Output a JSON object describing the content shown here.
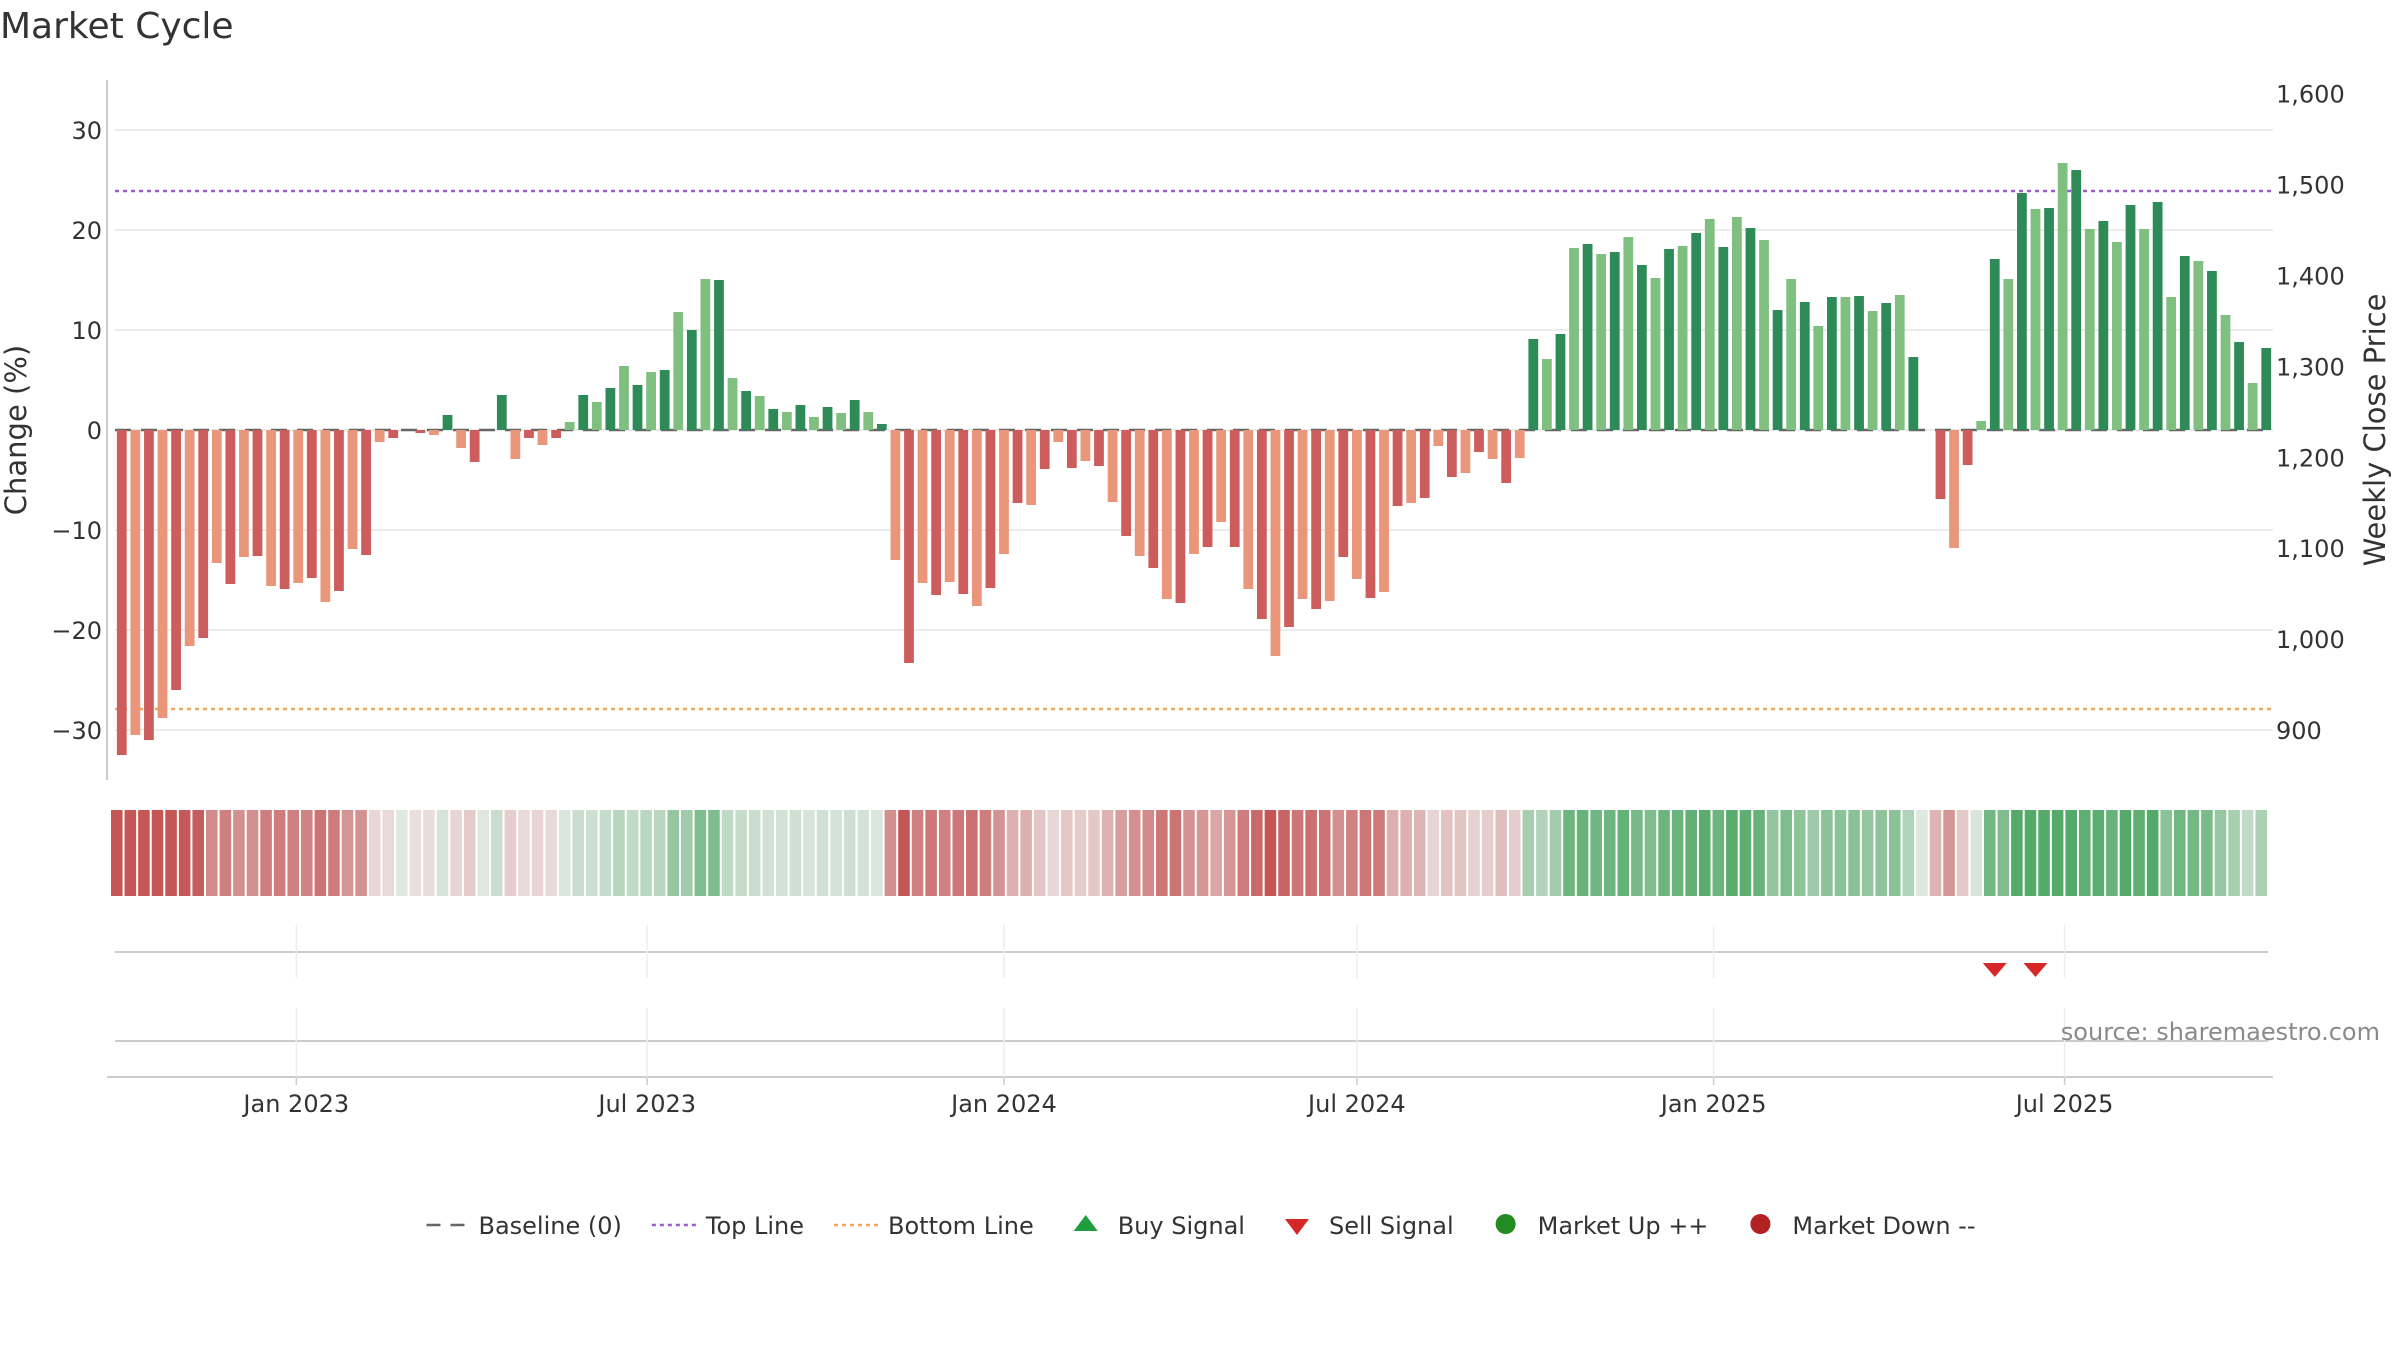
{
  "chart_data": {
    "type": "bar",
    "title": "Market Cycle",
    "ylabel": "Change (%)",
    "y2label": "Weekly Close Price",
    "ylim": [
      -35,
      35
    ],
    "yticks": [
      30,
      20,
      10,
      0,
      -10,
      -20,
      -30
    ],
    "ytick_labels": [
      "30",
      "20",
      "10",
      "0",
      "−10",
      "−20",
      "−30"
    ],
    "y2lim": [
      845,
      1615
    ],
    "y2ticks": [
      1600,
      1500,
      1400,
      1300,
      1200,
      1100,
      1000,
      900
    ],
    "y2tick_labels": [
      "1,600",
      "1,500",
      "1,400",
      "1,300",
      "1,200",
      "1,100",
      "1,000",
      "900"
    ],
    "grid": true,
    "x_start": "2022-10-03",
    "week_step_days": 7,
    "x_end": "2025-09-08",
    "xticks": [
      "2023-01-01",
      "2023-07-01",
      "2024-01-01",
      "2024-07-01",
      "2025-01-01",
      "2025-07-01"
    ],
    "xtick_labels": [
      "Jan 2023",
      "Jul 2023",
      "Jan 2024",
      "Jul 2024",
      "Jan 2025",
      "Jul 2025"
    ],
    "values": [
      -32.5,
      -30.5,
      -31,
      -28.8,
      -26,
      -21.6,
      -20.8,
      -13.3,
      -15.4,
      -12.7,
      -12.6,
      -15.6,
      -15.9,
      -15.3,
      -14.8,
      -17.2,
      -16.1,
      -11.9,
      -12.5,
      -1.2,
      -0.8,
      0,
      -0.3,
      -0.5,
      1.5,
      -1.8,
      -3.2,
      0,
      3.5,
      -2.9,
      -0.8,
      -1.5,
      -0.8,
      0.8,
      3.5,
      2.8,
      4.2,
      6.4,
      4.5,
      5.8,
      6,
      11.8,
      10,
      15.1,
      15,
      5.2,
      3.9,
      3.4,
      2.1,
      1.8,
      2.5,
      1.3,
      2.3,
      1.7,
      3,
      1.8,
      0.6,
      -13,
      -23.3,
      -15.3,
      -16.5,
      -15.2,
      -16.4,
      -17.6,
      -15.8,
      -12.4,
      -7.3,
      -7.5,
      -3.9,
      -1.2,
      -3.8,
      -3.1,
      -3.6,
      -7.2,
      -10.6,
      -12.6,
      -13.8,
      -16.9,
      -17.3,
      -12.4,
      -11.7,
      -9.2,
      -11.7,
      -15.9,
      -18.9,
      -22.6,
      -19.7,
      -16.9,
      -17.9,
      -17.1,
      -12.7,
      -14.9,
      -16.8,
      -16.2,
      -7.6,
      -7.3,
      -6.8,
      -1.6,
      -4.7,
      -4.3,
      -2.2,
      -2.9,
      -5.3,
      -2.8,
      9.1,
      7.1,
      9.6,
      18.2,
      18.6,
      17.6,
      17.8,
      19.3,
      16.5,
      15.2,
      18.1,
      18.4,
      19.7,
      21.1,
      18.3,
      21.3,
      20.2,
      19,
      12,
      15.1,
      12.8,
      10.4,
      13.3,
      13.3,
      13.4,
      11.9,
      12.7,
      13.5,
      7.3,
      0,
      -6.9,
      -11.8,
      -3.5,
      0.9,
      17.1,
      15.1,
      23.7,
      22.1,
      22.2,
      26.7,
      26,
      20.1,
      20.9,
      18.8,
      22.5,
      20.1,
      22.8,
      13.3,
      17.4,
      16.9,
      15.9,
      11.5,
      8.8,
      4.7,
      8.2
    ],
    "top_line": 23.9,
    "bottom_line": -27.9,
    "baseline": 0,
    "sell_signals": [
      "2025-05-26",
      "2025-06-16"
    ],
    "buy_signals": [],
    "colors": {
      "down_strong": "#cd5c5c",
      "down_light": "#e9967a",
      "up_strong": "#2e8b57",
      "up_light": "#7fbf7f",
      "top_line": "#9b59d0",
      "bottom_line": "#f4a460",
      "baseline": "#666666",
      "buy": "#1e9e3e",
      "sell": "#d62728",
      "market_up": "#228b22",
      "market_down": "#b22222",
      "grid": "#e6e6e6"
    },
    "legend_position": "bottom-center",
    "legend": [
      {
        "label": "Baseline (0)",
        "marker": "dash"
      },
      {
        "label": "Top Line",
        "marker": "dot-purple"
      },
      {
        "label": "Bottom Line",
        "marker": "dot-orange"
      },
      {
        "label": "Buy Signal",
        "marker": "triangle-up"
      },
      {
        "label": "Sell Signal",
        "marker": "triangle-down"
      },
      {
        "label": "Market Up ++",
        "marker": "circle-green"
      },
      {
        "label": "Market Down --",
        "marker": "circle-red"
      }
    ],
    "source": "source: sharemaestro.com"
  }
}
